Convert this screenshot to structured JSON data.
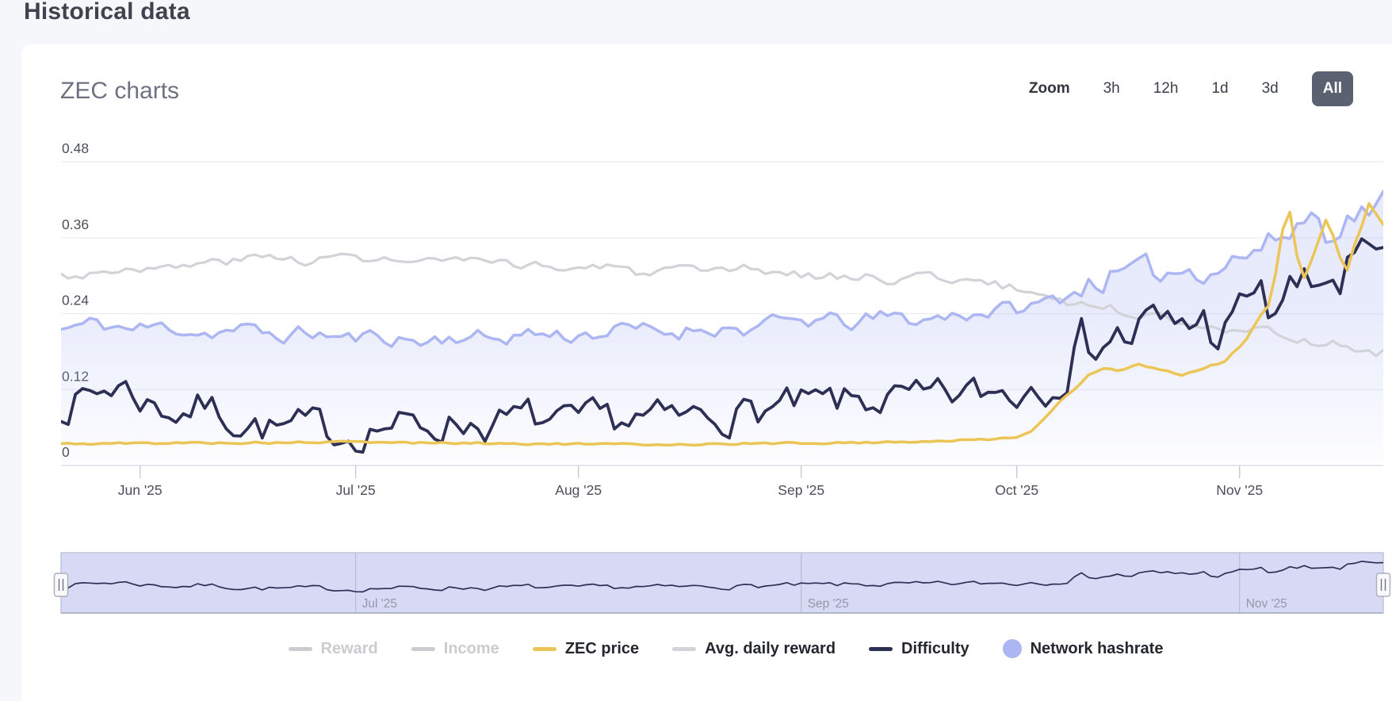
{
  "page": {
    "title": "Historical data"
  },
  "card": {
    "title": "ZEC charts"
  },
  "range_selector": {
    "label": "Zoom",
    "options": [
      "3h",
      "12h",
      "1d",
      "3d",
      "All"
    ],
    "selected": "All"
  },
  "colors": {
    "page_bg": "#f6f7fa",
    "card_bg": "#ffffff",
    "accent_button": "#5a6170",
    "grid": "#ededf1",
    "axis_line": "#dfe1ea",
    "tick": "#c9cdda",
    "axis_text": "#4b4f5a",
    "nav_fill": "#d8daf5",
    "nav_border": "#bfc1d4",
    "nav_grid": "#b9bbce",
    "nav_text": "#9398a8",
    "legend_disabled": "#cbcbd0"
  },
  "chart_data": {
    "type": "line",
    "title": "ZEC charts",
    "x_range": [
      "May 21 '25",
      "Nov 21 '25"
    ],
    "day_count": 184,
    "x_ticks": [
      {
        "label": "Jun '25",
        "day": 11
      },
      {
        "label": "Jul '25",
        "day": 41
      },
      {
        "label": "Aug '25",
        "day": 72
      },
      {
        "label": "Sep '25",
        "day": 103
      },
      {
        "label": "Oct '25",
        "day": 133
      },
      {
        "label": "Nov '25",
        "day": 164
      }
    ],
    "y_ticks": [
      "0",
      "0.12",
      "0.24",
      "0.36",
      "0.48"
    ],
    "ylim": [
      0,
      0.55
    ],
    "grid": true,
    "legend_position": "bottom",
    "series": [
      {
        "name": "Reward",
        "color": "#cbcbd0",
        "marker": "line",
        "disabled": true
      },
      {
        "name": "Income",
        "color": "#cbcbd0",
        "marker": "line",
        "disabled": true
      },
      {
        "name": "ZEC price",
        "color": "#ecc557",
        "marker": "line",
        "disabled": false,
        "width": 3.5,
        "noise": {
          "amp": 0.0015,
          "amp_late": 0.006,
          "late_from": 164,
          "seed": 5
        },
        "anchors": [
          [
            0,
            0.034
          ],
          [
            10,
            0.035
          ],
          [
            20,
            0.036
          ],
          [
            30,
            0.036
          ],
          [
            40,
            0.037
          ],
          [
            50,
            0.036
          ],
          [
            60,
            0.035
          ],
          [
            70,
            0.034
          ],
          [
            80,
            0.033
          ],
          [
            90,
            0.034
          ],
          [
            100,
            0.035
          ],
          [
            110,
            0.036
          ],
          [
            120,
            0.038
          ],
          [
            126,
            0.04
          ],
          [
            130,
            0.042
          ],
          [
            133,
            0.046
          ],
          [
            135,
            0.055
          ],
          [
            137,
            0.075
          ],
          [
            139,
            0.1
          ],
          [
            141,
            0.12
          ],
          [
            143,
            0.145
          ],
          [
            145,
            0.155
          ],
          [
            147,
            0.15
          ],
          [
            150,
            0.16
          ],
          [
            153,
            0.15
          ],
          [
            156,
            0.143
          ],
          [
            158,
            0.15
          ],
          [
            160,
            0.158
          ],
          [
            162,
            0.165
          ],
          [
            164,
            0.19
          ],
          [
            166,
            0.22
          ],
          [
            168,
            0.25
          ],
          [
            169,
            0.3
          ],
          [
            170,
            0.37
          ],
          [
            171,
            0.4
          ],
          [
            172,
            0.33
          ],
          [
            173,
            0.3
          ],
          [
            174,
            0.33
          ],
          [
            175,
            0.36
          ],
          [
            176,
            0.39
          ],
          [
            177,
            0.37
          ],
          [
            178,
            0.33
          ],
          [
            179,
            0.31
          ],
          [
            180,
            0.35
          ],
          [
            181,
            0.38
          ],
          [
            182,
            0.415
          ],
          [
            183,
            0.4
          ],
          [
            184,
            0.385
          ]
        ]
      },
      {
        "name": "Avg. daily reward",
        "color": "#d2d3d8",
        "marker": "line",
        "disabled": false,
        "width": 3.2,
        "noise": {
          "amp": 0.007,
          "amp_late": 0.007,
          "late_from": 170,
          "seed": 3
        },
        "anchors": [
          [
            0,
            0.3
          ],
          [
            5,
            0.305
          ],
          [
            10,
            0.315
          ],
          [
            15,
            0.31
          ],
          [
            20,
            0.32
          ],
          [
            25,
            0.325
          ],
          [
            30,
            0.33
          ],
          [
            35,
            0.325
          ],
          [
            40,
            0.33
          ],
          [
            45,
            0.325
          ],
          [
            50,
            0.32
          ],
          [
            55,
            0.325
          ],
          [
            60,
            0.315
          ],
          [
            65,
            0.32
          ],
          [
            70,
            0.31
          ],
          [
            75,
            0.315
          ],
          [
            80,
            0.305
          ],
          [
            85,
            0.31
          ],
          [
            90,
            0.3
          ],
          [
            95,
            0.31
          ],
          [
            100,
            0.305
          ],
          [
            105,
            0.3
          ],
          [
            110,
            0.3
          ],
          [
            115,
            0.295
          ],
          [
            120,
            0.3
          ],
          [
            125,
            0.295
          ],
          [
            130,
            0.285
          ],
          [
            135,
            0.275
          ],
          [
            140,
            0.26
          ],
          [
            145,
            0.25
          ],
          [
            150,
            0.24
          ],
          [
            155,
            0.23
          ],
          [
            160,
            0.225
          ],
          [
            164,
            0.215
          ],
          [
            168,
            0.21
          ],
          [
            172,
            0.2
          ],
          [
            176,
            0.195
          ],
          [
            180,
            0.185
          ],
          [
            182,
            0.178
          ],
          [
            184,
            0.178
          ]
        ]
      },
      {
        "name": "Difficulty",
        "color": "#2d3055",
        "marker": "line",
        "disabled": false,
        "width": 3.8,
        "noise": {
          "amp": 0.026,
          "amp_late": 0.042,
          "late_from": 133,
          "seed": 7
        },
        "anchors": [
          [
            0,
            0.095
          ],
          [
            5,
            0.115
          ],
          [
            8,
            0.13
          ],
          [
            12,
            0.1
          ],
          [
            16,
            0.085
          ],
          [
            20,
            0.095
          ],
          [
            25,
            0.07
          ],
          [
            30,
            0.055
          ],
          [
            35,
            0.06
          ],
          [
            40,
            0.05
          ],
          [
            45,
            0.065
          ],
          [
            50,
            0.06
          ],
          [
            55,
            0.07
          ],
          [
            60,
            0.065
          ],
          [
            65,
            0.075
          ],
          [
            70,
            0.06
          ],
          [
            75,
            0.07
          ],
          [
            80,
            0.075
          ],
          [
            85,
            0.07
          ],
          [
            90,
            0.08
          ],
          [
            95,
            0.085
          ],
          [
            100,
            0.09
          ],
          [
            105,
            0.095
          ],
          [
            110,
            0.1
          ],
          [
            115,
            0.105
          ],
          [
            120,
            0.1
          ],
          [
            125,
            0.11
          ],
          [
            129,
            0.115
          ],
          [
            133,
            0.12
          ],
          [
            136,
            0.14
          ],
          [
            139,
            0.17
          ],
          [
            142,
            0.19
          ],
          [
            145,
            0.21
          ],
          [
            148,
            0.2
          ],
          [
            151,
            0.22
          ],
          [
            154,
            0.21
          ],
          [
            157,
            0.23
          ],
          [
            160,
            0.22
          ],
          [
            163,
            0.21
          ],
          [
            166,
            0.28
          ],
          [
            168,
            0.24
          ],
          [
            170,
            0.27
          ],
          [
            172,
            0.28
          ],
          [
            174,
            0.26
          ],
          [
            176,
            0.3
          ],
          [
            178,
            0.29
          ],
          [
            180,
            0.32
          ],
          [
            182,
            0.3
          ],
          [
            184,
            0.34
          ]
        ]
      },
      {
        "name": "Network hashrate",
        "color": "#acb6f2",
        "marker": "circle",
        "disabled": false,
        "width": 3.5,
        "area": true,
        "noise": {
          "amp": 0.012,
          "amp_late": 0.02,
          "late_from": 140,
          "seed": 11
        },
        "anchors": [
          [
            0,
            0.215
          ],
          [
            5,
            0.225
          ],
          [
            10,
            0.215
          ],
          [
            15,
            0.22
          ],
          [
            20,
            0.21
          ],
          [
            25,
            0.215
          ],
          [
            30,
            0.205
          ],
          [
            35,
            0.21
          ],
          [
            40,
            0.2
          ],
          [
            45,
            0.205
          ],
          [
            50,
            0.195
          ],
          [
            55,
            0.205
          ],
          [
            60,
            0.2
          ],
          [
            65,
            0.21
          ],
          [
            70,
            0.205
          ],
          [
            75,
            0.21
          ],
          [
            80,
            0.215
          ],
          [
            85,
            0.21
          ],
          [
            90,
            0.22
          ],
          [
            95,
            0.215
          ],
          [
            100,
            0.225
          ],
          [
            105,
            0.23
          ],
          [
            110,
            0.225
          ],
          [
            115,
            0.235
          ],
          [
            120,
            0.23
          ],
          [
            125,
            0.24
          ],
          [
            130,
            0.245
          ],
          [
            135,
            0.25
          ],
          [
            140,
            0.27
          ],
          [
            144,
            0.295
          ],
          [
            148,
            0.3
          ],
          [
            152,
            0.305
          ],
          [
            156,
            0.31
          ],
          [
            160,
            0.315
          ],
          [
            164,
            0.33
          ],
          [
            168,
            0.35
          ],
          [
            171,
            0.37
          ],
          [
            174,
            0.4
          ],
          [
            176,
            0.37
          ],
          [
            178,
            0.385
          ],
          [
            180,
            0.4
          ],
          [
            182,
            0.405
          ],
          [
            184,
            0.42
          ]
        ]
      }
    ],
    "navigator": {
      "source_series": "Difficulty",
      "labels": [
        {
          "label": "Jul '25",
          "day": 41
        },
        {
          "label": "Sep '25",
          "day": 103
        },
        {
          "label": "Nov '25",
          "day": 164
        }
      ]
    }
  }
}
